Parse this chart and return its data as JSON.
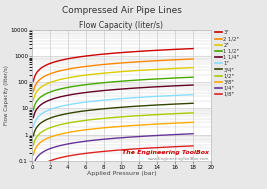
{
  "title": "Compressed Air Pipe Lines",
  "subtitle": "Flow Capacity (liter/s)",
  "xlabel": "Applied Pressure (bar)",
  "ylabel": "Flow Capacity (liter/s)",
  "xmin": 0,
  "xmax": 20,
  "ymin": 0.1,
  "ymax": 10000,
  "series": [
    {
      "label": "3\"",
      "color": "#cc0000",
      "a": 350,
      "b": 0.6
    },
    {
      "label": "2 1/2\"",
      "color": "#ff8800",
      "a": 140,
      "b": 0.6
    },
    {
      "label": "2\"",
      "color": "#ddcc00",
      "a": 65,
      "b": 0.6
    },
    {
      "label": "1 1/2\"",
      "color": "#44aa00",
      "a": 28,
      "b": 0.6
    },
    {
      "label": "1 1/4\"",
      "color": "#660022",
      "a": 14,
      "b": 0.6
    },
    {
      "label": "1\"",
      "color": "#88ddff",
      "a": 6.0,
      "b": 0.6
    },
    {
      "label": "3/4\"",
      "color": "#334400",
      "a": 2.8,
      "b": 0.6
    },
    {
      "label": "1/2\"",
      "color": "#aacc00",
      "a": 1.2,
      "b": 0.6
    },
    {
      "label": "3/8\"",
      "color": "#ffaa00",
      "a": 0.52,
      "b": 0.6
    },
    {
      "label": "1/4\"",
      "color": "#663399",
      "a": 0.19,
      "b": 0.6
    },
    {
      "label": "1/8\"",
      "color": "#dd2222",
      "a": 0.065,
      "b": 0.6
    }
  ],
  "fig_bg": "#e8e8e8",
  "plot_bg": "#ffffff",
  "grid_color": "#cccccc",
  "title_color": "#333333",
  "label_color": "#444444",
  "watermark": "The Engineering ToolBox",
  "watermark_color": "#cc0000",
  "watermark2": "www.EngineeringToolBox.com",
  "watermark2_color": "#888888"
}
